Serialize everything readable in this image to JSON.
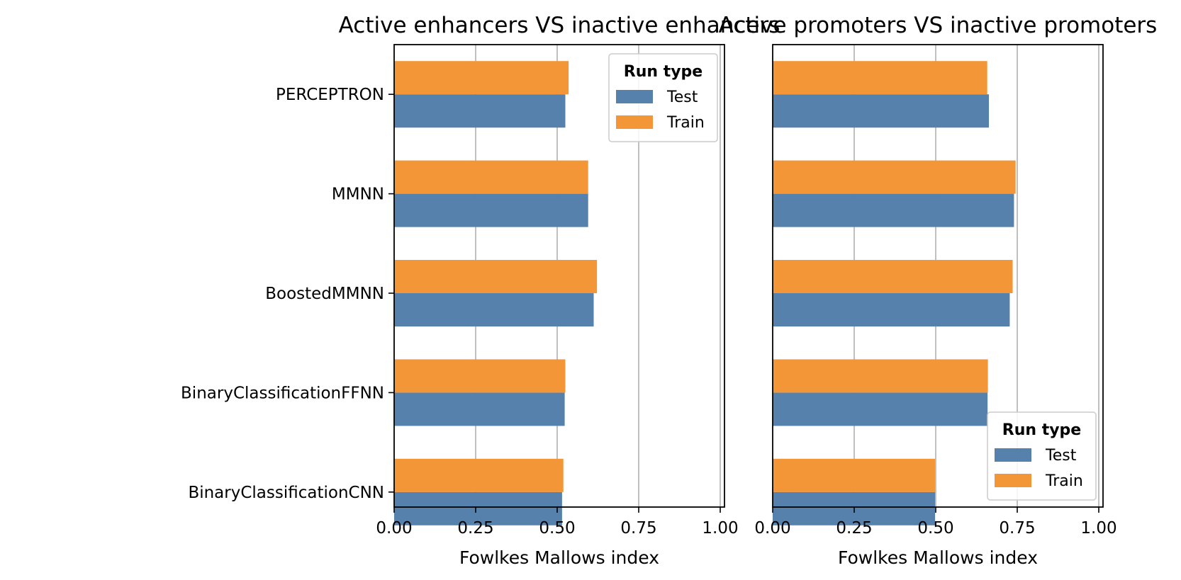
{
  "chart_data": [
    {
      "type": "bar",
      "orientation": "horizontal",
      "title": "Active enhancers VS inactive enhancers",
      "xlabel": "Fowlkes Mallows index",
      "ylabel": "",
      "xlim": [
        0,
        1
      ],
      "xticks": [
        "0.00",
        "0.25",
        "0.50",
        "0.75",
        "1.00"
      ],
      "categories": [
        "PERCEPTRON",
        "MMNN",
        "BoostedMMNN",
        "BinaryClassificationFFNN",
        "BinaryClassificationCNN"
      ],
      "series": [
        {
          "name": "Test",
          "color": "#5681ad",
          "values": [
            0.525,
            0.595,
            0.612,
            0.523,
            0.515
          ]
        },
        {
          "name": "Train",
          "color": "#f39638",
          "values": [
            0.535,
            0.595,
            0.622,
            0.525,
            0.519
          ]
        }
      ],
      "grid": "vertical",
      "legend": {
        "title": "Run type",
        "placement": "top-right"
      },
      "show_category_labels": true
    },
    {
      "type": "bar",
      "orientation": "horizontal",
      "title": "Active promoters VS inactive promoters",
      "xlabel": "Fowlkes Mallows index",
      "ylabel": "",
      "xlim": [
        0,
        1
      ],
      "xticks": [
        "0.00",
        "0.25",
        "0.50",
        "0.75",
        "1.00"
      ],
      "categories": [
        "PERCEPTRON",
        "MMNN",
        "BoostedMMNN",
        "BinaryClassificationFFNN",
        "BinaryClassificationCNN"
      ],
      "series": [
        {
          "name": "Test",
          "color": "#5681ad",
          "values": [
            0.663,
            0.74,
            0.727,
            0.659,
            0.498
          ]
        },
        {
          "name": "Train",
          "color": "#f39638",
          "values": [
            0.658,
            0.745,
            0.736,
            0.66,
            0.498
          ]
        }
      ],
      "grid": "vertical",
      "legend": {
        "title": "Run type",
        "placement": "bottom-right"
      },
      "show_category_labels": false
    }
  ]
}
